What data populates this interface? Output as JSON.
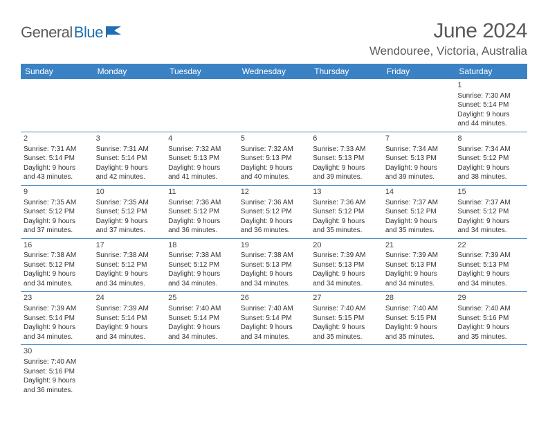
{
  "logo": {
    "text_gray": "General",
    "text_blue": "Blue"
  },
  "header": {
    "month_title": "June 2024",
    "location": "Wendouree, Victoria, Australia"
  },
  "colors": {
    "header_bg": "#3b82c4",
    "header_text": "#ffffff",
    "row_border": "#3b82c4",
    "body_text": "#333333",
    "title_text": "#5a5a5a",
    "logo_gray": "#5a5a5a",
    "logo_blue": "#1f6fb2"
  },
  "calendar": {
    "columns": [
      "Sunday",
      "Monday",
      "Tuesday",
      "Wednesday",
      "Thursday",
      "Friday",
      "Saturday"
    ],
    "weeks": [
      [
        null,
        null,
        null,
        null,
        null,
        null,
        {
          "day": "1",
          "sunrise": "Sunrise: 7:30 AM",
          "sunset": "Sunset: 5:14 PM",
          "day1": "Daylight: 9 hours",
          "day2": "and 44 minutes."
        }
      ],
      [
        {
          "day": "2",
          "sunrise": "Sunrise: 7:31 AM",
          "sunset": "Sunset: 5:14 PM",
          "day1": "Daylight: 9 hours",
          "day2": "and 43 minutes."
        },
        {
          "day": "3",
          "sunrise": "Sunrise: 7:31 AM",
          "sunset": "Sunset: 5:14 PM",
          "day1": "Daylight: 9 hours",
          "day2": "and 42 minutes."
        },
        {
          "day": "4",
          "sunrise": "Sunrise: 7:32 AM",
          "sunset": "Sunset: 5:13 PM",
          "day1": "Daylight: 9 hours",
          "day2": "and 41 minutes."
        },
        {
          "day": "5",
          "sunrise": "Sunrise: 7:32 AM",
          "sunset": "Sunset: 5:13 PM",
          "day1": "Daylight: 9 hours",
          "day2": "and 40 minutes."
        },
        {
          "day": "6",
          "sunrise": "Sunrise: 7:33 AM",
          "sunset": "Sunset: 5:13 PM",
          "day1": "Daylight: 9 hours",
          "day2": "and 39 minutes."
        },
        {
          "day": "7",
          "sunrise": "Sunrise: 7:34 AM",
          "sunset": "Sunset: 5:13 PM",
          "day1": "Daylight: 9 hours",
          "day2": "and 39 minutes."
        },
        {
          "day": "8",
          "sunrise": "Sunrise: 7:34 AM",
          "sunset": "Sunset: 5:12 PM",
          "day1": "Daylight: 9 hours",
          "day2": "and 38 minutes."
        }
      ],
      [
        {
          "day": "9",
          "sunrise": "Sunrise: 7:35 AM",
          "sunset": "Sunset: 5:12 PM",
          "day1": "Daylight: 9 hours",
          "day2": "and 37 minutes."
        },
        {
          "day": "10",
          "sunrise": "Sunrise: 7:35 AM",
          "sunset": "Sunset: 5:12 PM",
          "day1": "Daylight: 9 hours",
          "day2": "and 37 minutes."
        },
        {
          "day": "11",
          "sunrise": "Sunrise: 7:36 AM",
          "sunset": "Sunset: 5:12 PM",
          "day1": "Daylight: 9 hours",
          "day2": "and 36 minutes."
        },
        {
          "day": "12",
          "sunrise": "Sunrise: 7:36 AM",
          "sunset": "Sunset: 5:12 PM",
          "day1": "Daylight: 9 hours",
          "day2": "and 36 minutes."
        },
        {
          "day": "13",
          "sunrise": "Sunrise: 7:36 AM",
          "sunset": "Sunset: 5:12 PM",
          "day1": "Daylight: 9 hours",
          "day2": "and 35 minutes."
        },
        {
          "day": "14",
          "sunrise": "Sunrise: 7:37 AM",
          "sunset": "Sunset: 5:12 PM",
          "day1": "Daylight: 9 hours",
          "day2": "and 35 minutes."
        },
        {
          "day": "15",
          "sunrise": "Sunrise: 7:37 AM",
          "sunset": "Sunset: 5:12 PM",
          "day1": "Daylight: 9 hours",
          "day2": "and 34 minutes."
        }
      ],
      [
        {
          "day": "16",
          "sunrise": "Sunrise: 7:38 AM",
          "sunset": "Sunset: 5:12 PM",
          "day1": "Daylight: 9 hours",
          "day2": "and 34 minutes."
        },
        {
          "day": "17",
          "sunrise": "Sunrise: 7:38 AM",
          "sunset": "Sunset: 5:12 PM",
          "day1": "Daylight: 9 hours",
          "day2": "and 34 minutes."
        },
        {
          "day": "18",
          "sunrise": "Sunrise: 7:38 AM",
          "sunset": "Sunset: 5:12 PM",
          "day1": "Daylight: 9 hours",
          "day2": "and 34 minutes."
        },
        {
          "day": "19",
          "sunrise": "Sunrise: 7:38 AM",
          "sunset": "Sunset: 5:13 PM",
          "day1": "Daylight: 9 hours",
          "day2": "and 34 minutes."
        },
        {
          "day": "20",
          "sunrise": "Sunrise: 7:39 AM",
          "sunset": "Sunset: 5:13 PM",
          "day1": "Daylight: 9 hours",
          "day2": "and 34 minutes."
        },
        {
          "day": "21",
          "sunrise": "Sunrise: 7:39 AM",
          "sunset": "Sunset: 5:13 PM",
          "day1": "Daylight: 9 hours",
          "day2": "and 34 minutes."
        },
        {
          "day": "22",
          "sunrise": "Sunrise: 7:39 AM",
          "sunset": "Sunset: 5:13 PM",
          "day1": "Daylight: 9 hours",
          "day2": "and 34 minutes."
        }
      ],
      [
        {
          "day": "23",
          "sunrise": "Sunrise: 7:39 AM",
          "sunset": "Sunset: 5:14 PM",
          "day1": "Daylight: 9 hours",
          "day2": "and 34 minutes."
        },
        {
          "day": "24",
          "sunrise": "Sunrise: 7:39 AM",
          "sunset": "Sunset: 5:14 PM",
          "day1": "Daylight: 9 hours",
          "day2": "and 34 minutes."
        },
        {
          "day": "25",
          "sunrise": "Sunrise: 7:40 AM",
          "sunset": "Sunset: 5:14 PM",
          "day1": "Daylight: 9 hours",
          "day2": "and 34 minutes."
        },
        {
          "day": "26",
          "sunrise": "Sunrise: 7:40 AM",
          "sunset": "Sunset: 5:14 PM",
          "day1": "Daylight: 9 hours",
          "day2": "and 34 minutes."
        },
        {
          "day": "27",
          "sunrise": "Sunrise: 7:40 AM",
          "sunset": "Sunset: 5:15 PM",
          "day1": "Daylight: 9 hours",
          "day2": "and 35 minutes."
        },
        {
          "day": "28",
          "sunrise": "Sunrise: 7:40 AM",
          "sunset": "Sunset: 5:15 PM",
          "day1": "Daylight: 9 hours",
          "day2": "and 35 minutes."
        },
        {
          "day": "29",
          "sunrise": "Sunrise: 7:40 AM",
          "sunset": "Sunset: 5:16 PM",
          "day1": "Daylight: 9 hours",
          "day2": "and 35 minutes."
        }
      ],
      [
        {
          "day": "30",
          "sunrise": "Sunrise: 7:40 AM",
          "sunset": "Sunset: 5:16 PM",
          "day1": "Daylight: 9 hours",
          "day2": "and 36 minutes."
        },
        null,
        null,
        null,
        null,
        null,
        null
      ]
    ]
  }
}
